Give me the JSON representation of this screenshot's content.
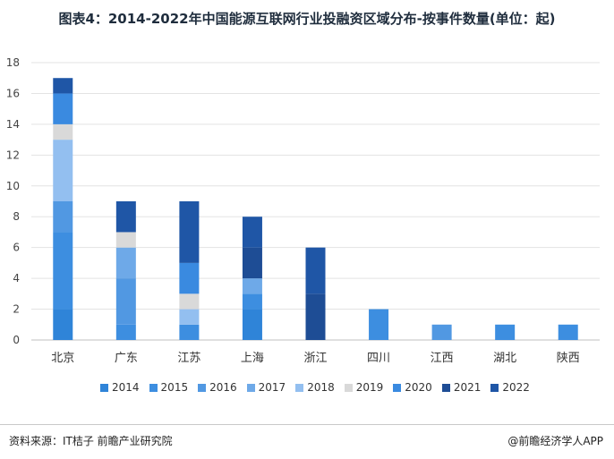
{
  "title": "图表4：2014-2022年中国能源互联网行业投融资区域分布-按事件数量(单位：起)",
  "source": "资料来源：IT桔子 前瞻产业研究院",
  "brand": "@前瞻经济学人APP",
  "chart_data": {
    "type": "bar",
    "stacked": true,
    "categories": [
      "北京",
      "广东",
      "江苏",
      "上海",
      "浙江",
      "四川",
      "江西",
      "湖北",
      "陕西"
    ],
    "ylim": [
      0,
      18
    ],
    "yticks": [
      0,
      2,
      4,
      6,
      8,
      10,
      12,
      14,
      16,
      18
    ],
    "grid": true,
    "legend_position": "bottom",
    "series": [
      {
        "name": "2014",
        "color": "#2f84d8",
        "values": [
          2,
          0,
          0,
          2,
          0,
          0,
          0,
          0,
          0
        ]
      },
      {
        "name": "2015",
        "color": "#3d8ee0",
        "values": [
          5,
          1,
          1,
          1,
          0,
          2,
          0,
          1,
          1
        ]
      },
      {
        "name": "2016",
        "color": "#5198e2",
        "values": [
          2,
          3,
          0,
          0,
          0,
          0,
          1,
          0,
          0
        ]
      },
      {
        "name": "2017",
        "color": "#6ea9e8",
        "values": [
          0,
          2,
          0,
          1,
          0,
          0,
          0,
          0,
          0
        ]
      },
      {
        "name": "2018",
        "color": "#93bff0",
        "values": [
          4,
          0,
          1,
          0,
          0,
          0,
          0,
          0,
          0
        ]
      },
      {
        "name": "2019",
        "color": "#d9d9d9",
        "values": [
          1,
          1,
          1,
          0,
          0,
          0,
          0,
          0,
          0
        ]
      },
      {
        "name": "2020",
        "color": "#3a8ae0",
        "values": [
          2,
          0,
          2,
          0,
          0,
          0,
          0,
          0,
          0
        ]
      },
      {
        "name": "2021",
        "color": "#1e4d95",
        "values": [
          0,
          0,
          0,
          2,
          3,
          0,
          0,
          0,
          0
        ]
      },
      {
        "name": "2022",
        "color": "#1f56a6",
        "values": [
          1,
          2,
          4,
          2,
          3,
          0,
          0,
          0,
          0
        ]
      }
    ]
  }
}
